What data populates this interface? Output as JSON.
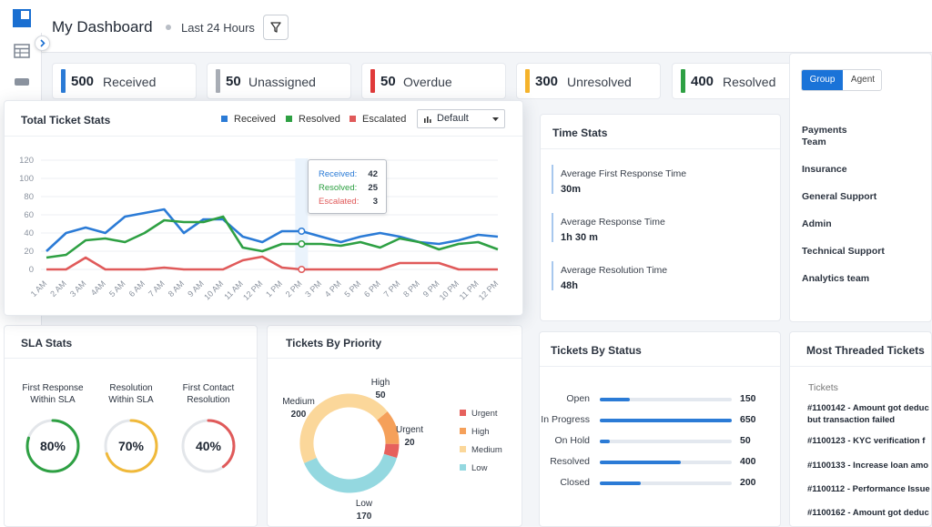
{
  "header": {
    "title": "My Dashboard",
    "range": "Last 24 Hours"
  },
  "colors": {
    "received": "#2b7bd6",
    "resolved": "#2ea043",
    "escalated": "#e05a5a",
    "unassigned": "#a8adb5",
    "overdue": "#e03a3a",
    "unresolved": "#f5b32b",
    "resolved_stat": "#2ea043",
    "urgent": "#e6615d",
    "high": "#f5a05a",
    "medium": "#fbd79a",
    "low": "#94d8e0",
    "accent": "#1a73d8"
  },
  "stats": [
    {
      "value": "500",
      "label": "Received"
    },
    {
      "value": "50",
      "label": "Unassigned"
    },
    {
      "value": "50",
      "label": "Overdue"
    },
    {
      "value": "300",
      "label": "Unresolved"
    },
    {
      "value": "400",
      "label": "Resolved"
    }
  ],
  "total_stats": {
    "title": "Total Ticket Stats",
    "legend": [
      "Received",
      "Resolved",
      "Escalated"
    ],
    "dropdown": "Default",
    "tooltip": {
      "received_label": "Received:",
      "received": "42",
      "resolved_label": "Resolved:",
      "resolved": "25",
      "escalated_label": "Escalated:",
      "escalated": "3"
    }
  },
  "chart_data": {
    "type": "line",
    "x": [
      "1 AM",
      "2 AM",
      "3 AM",
      "4AM",
      "5 AM",
      "6 AM",
      "7 AM",
      "8 AM",
      "9 AM",
      "10 AM",
      "11 AM",
      "12 PM",
      "1 PM",
      "2 PM",
      "3 PM",
      "4 PM",
      "5 PM",
      "6 PM",
      "7 PM",
      "8 PM",
      "9 PM",
      "10 PM",
      "11 PM",
      "12 PM"
    ],
    "ylim": [
      0,
      120
    ],
    "yticks": [
      "120",
      "100",
      "80",
      "60",
      "40",
      "20",
      "0"
    ],
    "grid": true,
    "legend_position": "top-right",
    "series": [
      {
        "name": "Received",
        "values": [
          20,
          40,
          46,
          40,
          58,
          62,
          66,
          40,
          55,
          55,
          36,
          30,
          42,
          42,
          36,
          30,
          36,
          40,
          36,
          30,
          28,
          32,
          38,
          36
        ]
      },
      {
        "name": "Resolved",
        "values": [
          13,
          16,
          32,
          34,
          30,
          40,
          54,
          52,
          52,
          58,
          24,
          20,
          28,
          28,
          28,
          26,
          30,
          24,
          34,
          30,
          22,
          28,
          30,
          22
        ]
      },
      {
        "name": "Escalated",
        "values": [
          0,
          0,
          13,
          0,
          0,
          0,
          2,
          0,
          0,
          0,
          10,
          14,
          2,
          0,
          0,
          0,
          0,
          0,
          7,
          7,
          7,
          0,
          0,
          0
        ]
      }
    ]
  },
  "time_stats": {
    "title": "Time Stats",
    "items": [
      {
        "label": "Average First Response Time",
        "value": "30m"
      },
      {
        "label": "Average Response Time",
        "value": "1h 30 m"
      },
      {
        "label": "Average Resolution Time",
        "value": "48h"
      }
    ]
  },
  "group_panel": {
    "tabs": [
      "Group",
      "Agent"
    ],
    "items": [
      "Payments\nTeam",
      "Insurance",
      "General Support",
      "Admin",
      "Technical Support",
      "Analytics team"
    ]
  },
  "sla": {
    "title": "SLA Stats",
    "items": [
      {
        "label": "First Response\nWithin SLA",
        "value": "80%",
        "pct": 0.8,
        "color": "#2ea043"
      },
      {
        "label": "Resolution\nWithin SLA",
        "value": "70%",
        "pct": 0.7,
        "color": "#f0b93a"
      },
      {
        "label": "First Contact\nResolution",
        "value": "40%",
        "pct": 0.4,
        "color": "#e05a5a"
      }
    ]
  },
  "priority": {
    "title": "Tickets By Priority",
    "slices": [
      {
        "name": "Urgent",
        "value": 20
      },
      {
        "name": "High",
        "value": 50
      },
      {
        "name": "Medium",
        "value": 200
      },
      {
        "name": "Low",
        "value": 170
      }
    ],
    "callouts": {
      "high_name": "High",
      "high_value": "50",
      "urgent_name": "Urgent",
      "urgent_value": "20",
      "medium_name": "Medium",
      "medium_value": "200",
      "low_name": "Low",
      "low_value": "170"
    }
  },
  "status": {
    "title": "Tickets By Status",
    "max": 650,
    "items": [
      {
        "label": "Open",
        "value": 150
      },
      {
        "label": "In Progress",
        "value": 650
      },
      {
        "label": "On Hold",
        "value": 50
      },
      {
        "label": "Resolved",
        "value": 400
      },
      {
        "label": "Closed",
        "value": 200
      }
    ]
  },
  "threaded": {
    "title": "Most Threaded Tickets",
    "column": "Tickets",
    "items": [
      {
        "line1": "#1100142 - Amount got deduc",
        "line2": "but transaction failed"
      },
      {
        "line1": "#1100123 - KYC verification f",
        "line2": ""
      },
      {
        "line1": "#1100133 - Increase loan amo",
        "line2": ""
      },
      {
        "line1": "#1100112 - Performance Issue",
        "line2": ""
      },
      {
        "line1": "#1100162 - Amount got deduc",
        "line2": ""
      }
    ]
  }
}
